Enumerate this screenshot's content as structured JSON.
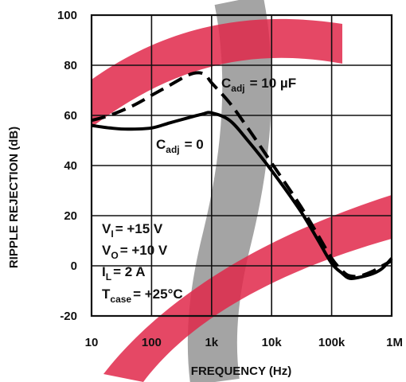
{
  "chart_data": {
    "type": "line",
    "title": "",
    "xlabel": "FREQUENCY (Hz)",
    "ylabel": "RIPPLE REJECTION (dB)",
    "xscale": "log",
    "xlim": [
      10,
      1000000
    ],
    "ylim": [
      -20,
      100
    ],
    "xticks": [
      10,
      100,
      1000,
      10000,
      100000,
      1000000
    ],
    "xtick_labels": [
      "10",
      "100",
      "1k",
      "10k",
      "100k",
      "1M"
    ],
    "yticks": [
      -20,
      0,
      20,
      40,
      60,
      80,
      100
    ],
    "ytick_labels": [
      "-20",
      "0",
      "20",
      "40",
      "60",
      "80",
      "100"
    ],
    "grid": true,
    "series": [
      {
        "name": "Cadj = 0",
        "style": "solid",
        "x": [
          10,
          20,
          40,
          100,
          200,
          400,
          700,
          1000,
          2000,
          4000,
          10000,
          30000,
          60000,
          100000,
          150000,
          200000,
          300000,
          500000,
          700000,
          1000000
        ],
        "y": [
          56,
          55,
          54.5,
          55,
          57,
          59,
          60.5,
          61,
          58,
          50,
          38,
          22,
          10,
          1,
          -3,
          -5,
          -4.5,
          -3,
          -1,
          3
        ]
      },
      {
        "name": "Cadj = 10 µF",
        "style": "dashed",
        "x": [
          10,
          20,
          50,
          100,
          200,
          400,
          600,
          800,
          1000,
          2000,
          4000,
          10000,
          30000,
          60000,
          100000,
          150000,
          200000,
          300000,
          500000,
          700000,
          1000000
        ],
        "y": [
          58,
          60,
          64,
          68,
          72,
          76,
          77,
          76,
          73,
          65,
          55,
          41,
          24,
          12,
          3,
          -2,
          -4,
          -4,
          -2,
          0,
          2
        ]
      }
    ],
    "annotations": {
      "cadj10": {
        "main": "C",
        "sub": "adj",
        "rest": "= 10 µF"
      },
      "cadj0": {
        "main": "C",
        "sub": "adj",
        "rest": "= 0"
      },
      "conditions": [
        {
          "main": "V",
          "sub": "I",
          "rest": "= +15 V"
        },
        {
          "main": "V",
          "sub": "O",
          "rest": "= +10 V"
        },
        {
          "main": "I",
          "sub": "L",
          "rest": "= 2 A"
        },
        {
          "main": "T",
          "sub": "case",
          "rest": "= +25°C"
        }
      ]
    },
    "watermark_colors": {
      "red": "#e0284a",
      "gray": "#9a9a9a"
    }
  }
}
